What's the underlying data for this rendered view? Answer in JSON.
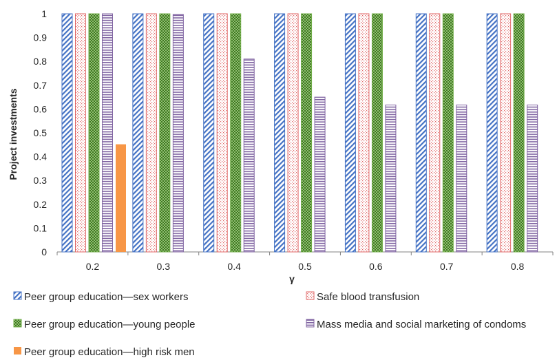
{
  "chart_data": {
    "type": "bar",
    "title": "",
    "xlabel": "γ",
    "ylabel": "Project investments",
    "categories": [
      "0.2",
      "0.3",
      "0.4",
      "0.5",
      "0.6",
      "0.7",
      "0.8"
    ],
    "ylim": [
      0,
      1
    ],
    "yticks": [
      "0",
      "0.1",
      "0.2",
      "0.3",
      "0.4",
      "0.5",
      "0.6",
      "0.7",
      "0.8",
      "0.9",
      "1"
    ],
    "grid": false,
    "legend_position": "bottom",
    "series": [
      {
        "name": "Peer group education—sex workers",
        "pattern": "diagonal-lines",
        "color": "#4472c4",
        "values": [
          1,
          1,
          1,
          1,
          1,
          1,
          1
        ]
      },
      {
        "name": "Safe blood transfusion",
        "pattern": "dotted-grid",
        "color": "#e06666",
        "values": [
          1,
          1,
          1,
          1,
          1,
          1,
          1
        ]
      },
      {
        "name": "Peer group education—young people",
        "pattern": "dots",
        "color": "#70ad47",
        "values": [
          1,
          1,
          1,
          1,
          1,
          1,
          1
        ]
      },
      {
        "name": "Mass media and social marketing of condoms",
        "pattern": "horizontal-lines",
        "color": "#8064a2",
        "values": [
          1,
          0.997,
          0.81,
          0.65,
          0.617,
          0.617,
          0.617
        ]
      },
      {
        "name": "Peer group education—high risk men",
        "pattern": "solid",
        "color": "#f79646",
        "values": [
          0.452,
          0,
          0,
          0,
          0,
          0,
          0
        ]
      }
    ]
  }
}
